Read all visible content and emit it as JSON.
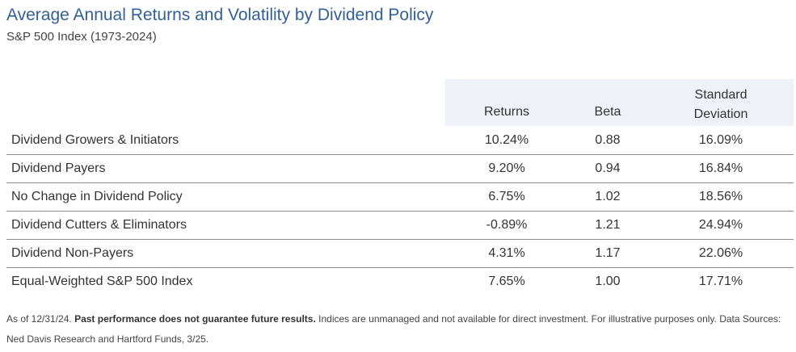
{
  "chart_data": {
    "type": "table",
    "title": "Average Annual Returns and Volatility by Dividend Policy",
    "subtitle": "S&P 500 Index (1973-2024)",
    "columns": [
      "Returns",
      "Beta",
      "Standard",
      "Deviation"
    ],
    "rows": [
      {
        "name": "Dividend Growers & Initiators",
        "returns": "10.24%",
        "beta": "0.88",
        "std_dev": "16.09%"
      },
      {
        "name": "Dividend Payers",
        "returns": "9.20%",
        "beta": "0.94",
        "std_dev": "16.84%"
      },
      {
        "name": "No Change in Dividend Policy",
        "returns": "6.75%",
        "beta": "1.02",
        "std_dev": "18.56%"
      },
      {
        "name": "Dividend Cutters & Eliminators",
        "returns": "-0.89%",
        "beta": "1.21",
        "std_dev": "24.94%"
      },
      {
        "name": "Dividend Non-Payers",
        "returns": "4.31%",
        "beta": "1.17",
        "std_dev": "22.06%"
      },
      {
        "name": "Equal-Weighted S&P 500 Index",
        "returns": "7.65%",
        "beta": "1.00",
        "std_dev": "17.71%"
      }
    ]
  },
  "footnote": {
    "prefix": "As of 12/31/24. ",
    "bold": "Past performance does not guarantee future results.",
    "suffix": " Indices are unmanaged and not available for direct investment. For illustrative purposes only. Data Sources: Ned Davis Research and Hartford Funds, 3/25."
  },
  "colors": {
    "title": "#2f5f9e",
    "header_bg": "#eef1f6",
    "rule": "#8c8c8c"
  }
}
